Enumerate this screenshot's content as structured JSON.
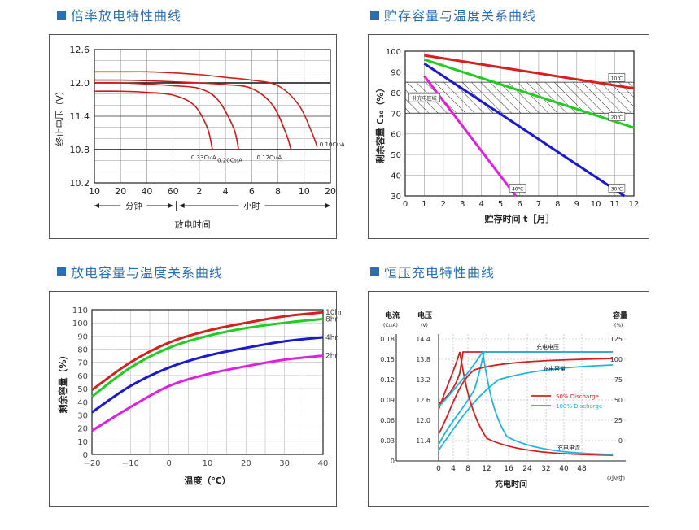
{
  "panels": [
    {
      "title": "倍率放电特性曲线"
    },
    {
      "title": "贮存容量与温度关系曲线"
    },
    {
      "title": "放电容量与温度关系曲线"
    },
    {
      "title": "恒压充电特性曲线"
    }
  ],
  "chart_data": [
    {
      "type": "line",
      "title": "倍率放电特性曲线",
      "ylabel": "终止电压（V）",
      "xlabel": "放电时间",
      "x_ticks": [
        "10",
        "20",
        "40",
        "60",
        "2",
        "4",
        "6",
        "8",
        "10",
        "20"
      ],
      "x_groups": [
        "分钟",
        "小时"
      ],
      "y_ticks": [
        "12.6",
        "12.0",
        "11.4",
        "10.8",
        "10.2"
      ],
      "ylim": [
        10.2,
        12.6
      ],
      "series": [
        {
          "name": "0.33C₁₀A",
          "points": [
            [
              0,
              11.85
            ],
            [
              1,
              11.85
            ],
            [
              2,
              11.83
            ],
            [
              3,
              11.78
            ],
            [
              3.8,
              11.6
            ],
            [
              4.3,
              11.2
            ],
            [
              4.5,
              10.8
            ]
          ]
        },
        {
          "name": "0.20C₁₀A",
          "points": [
            [
              0,
              12.0
            ],
            [
              1,
              12.0
            ],
            [
              2,
              11.98
            ],
            [
              3,
              11.95
            ],
            [
              4,
              11.9
            ],
            [
              4.7,
              11.7
            ],
            [
              5.3,
              11.2
            ],
            [
              5.5,
              10.8
            ]
          ]
        },
        {
          "name": "0.12C₁₀A",
          "points": [
            [
              0,
              12.05
            ],
            [
              1,
              12.05
            ],
            [
              2,
              12.04
            ],
            [
              3,
              12.02
            ],
            [
              4,
              12.0
            ],
            [
              5,
              11.97
            ],
            [
              6,
              11.9
            ],
            [
              6.8,
              11.6
            ],
            [
              7.3,
              11.1
            ],
            [
              7.5,
              10.8
            ]
          ]
        },
        {
          "name": "0.10C₁₀A",
          "points": [
            [
              0,
              12.2
            ],
            [
              1,
              12.2
            ],
            [
              2,
              12.2
            ],
            [
              3,
              12.18
            ],
            [
              4,
              12.15
            ],
            [
              5,
              12.1
            ],
            [
              6,
              12.05
            ],
            [
              7,
              11.95
            ],
            [
              7.8,
              11.6
            ],
            [
              8.3,
              11.1
            ],
            [
              8.5,
              10.85
            ]
          ]
        }
      ],
      "reference_line": 12.0
    },
    {
      "type": "line",
      "title": "贮存容量与温度关系曲线",
      "ylabel": "剩余容量 C₁₀（%）",
      "xlabel": "贮存时间 t［月］",
      "xlim": [
        0,
        12
      ],
      "ylim": [
        30,
        100
      ],
      "x_ticks": [
        "0",
        "1",
        "2",
        "3",
        "4",
        "5",
        "6",
        "7",
        "8",
        "9",
        "10",
        "11",
        "12"
      ],
      "y_ticks": [
        "30",
        "40",
        "50",
        "60",
        "70",
        "80",
        "90",
        "100"
      ],
      "hatched_band": [
        70,
        85
      ],
      "band_label": "补充电区域",
      "series": [
        {
          "name": "10℃",
          "color": "#d62020",
          "points": [
            [
              1,
              98
            ],
            [
              12,
              82
            ]
          ]
        },
        {
          "name": "20℃",
          "color": "#22cc22",
          "points": [
            [
              1,
              96
            ],
            [
              12,
              63
            ]
          ]
        },
        {
          "name": "30℃",
          "color": "#1a1acc",
          "points": [
            [
              1,
              94
            ],
            [
              11.5,
              30
            ]
          ]
        },
        {
          "name": "40℃",
          "color": "#e020e0",
          "points": [
            [
              1,
              88
            ],
            [
              5.8,
              30
            ]
          ]
        }
      ]
    },
    {
      "type": "line",
      "title": "放电容量与温度关系曲线",
      "ylabel": "剩余容量（%）",
      "xlabel": "温度（℃）",
      "xlim": [
        -20,
        40
      ],
      "ylim": [
        0,
        110
      ],
      "x_ticks": [
        "−20",
        "−10",
        "0",
        "10",
        "20",
        "30",
        "40"
      ],
      "y_ticks": [
        "0",
        "10",
        "20",
        "30",
        "40",
        "50",
        "60",
        "70",
        "80",
        "90",
        "100",
        "110"
      ],
      "series": [
        {
          "name": "10hr",
          "color": "#d62020",
          "points": [
            [
              -20,
              49
            ],
            [
              -10,
              70
            ],
            [
              0,
              85
            ],
            [
              10,
              94
            ],
            [
              20,
              100
            ],
            [
              30,
              105
            ],
            [
              40,
              108
            ]
          ]
        },
        {
          "name": "8hr",
          "color": "#22cc22",
          "points": [
            [
              -20,
              44
            ],
            [
              -10,
              66
            ],
            [
              0,
              81
            ],
            [
              10,
              90
            ],
            [
              20,
              96
            ],
            [
              30,
              100
            ],
            [
              40,
              103
            ]
          ]
        },
        {
          "name": "4hr",
          "color": "#1a1acc",
          "points": [
            [
              -20,
              32
            ],
            [
              -10,
              52
            ],
            [
              0,
              66
            ],
            [
              10,
              75
            ],
            [
              20,
              81
            ],
            [
              30,
              86
            ],
            [
              40,
              89
            ]
          ]
        },
        {
          "name": "2hr",
          "color": "#e020e0",
          "points": [
            [
              -20,
              18
            ],
            [
              -10,
              36
            ],
            [
              0,
              52
            ],
            [
              10,
              61
            ],
            [
              20,
              67
            ],
            [
              30,
              72
            ],
            [
              40,
              75
            ]
          ]
        }
      ]
    },
    {
      "type": "line",
      "title": "恒压充电特性曲线",
      "xlabel": "充电时间",
      "x_unit": "（小时）",
      "left_axis1_title": "电流",
      "left_axis1_unit": "(C₁₀A)",
      "left_axis2_title": "电压",
      "left_axis2_unit": "(V)",
      "right_axis_title": "容量",
      "right_axis_unit": "(%)",
      "current_ticks": [
        "0.18",
        "0.15",
        "0.12",
        "0.09",
        "0.06",
        "0.03",
        "0"
      ],
      "voltage_ticks": [
        "14.4",
        "13.8",
        "13.2",
        "12.6",
        "12.0",
        "11.4"
      ],
      "capacity_ticks": [
        "125",
        "100",
        "75",
        "50",
        "25",
        "0"
      ],
      "x_ticks": [
        "0",
        "4",
        "8",
        "12",
        "16",
        "24",
        "32",
        "40",
        "48"
      ],
      "labels": {
        "voltage": "充电电压",
        "capacity": "充电容量",
        "current": "充电电流"
      },
      "legend": [
        {
          "name": "50% Discharge",
          "color": "#d62020"
        },
        {
          "name": "100% Discharge",
          "color": "#22aadd"
        }
      ]
    }
  ]
}
